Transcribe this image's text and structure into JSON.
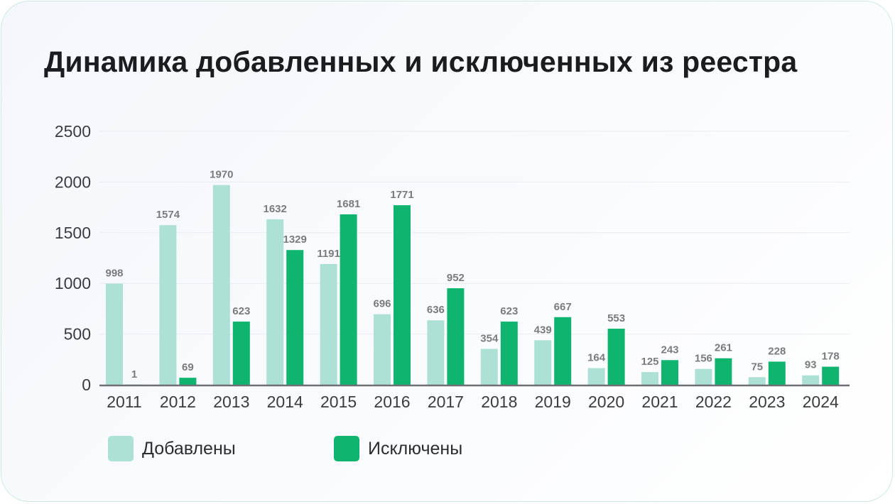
{
  "title": "Динамика добавленных и исключенных из реестра",
  "colors": {
    "added": "#aee1d5",
    "removed": "#0fb56f",
    "axis": "#6e7076",
    "grid": "#e9ecf0",
    "label": "#7a7b7e"
  },
  "chart_data": {
    "type": "bar",
    "title": "Динамика добавленных и исключенных из реестра",
    "categories": [
      "2011",
      "2012",
      "2013",
      "2014",
      "2015",
      "2016",
      "2017",
      "2018",
      "2019",
      "2020",
      "2021",
      "2022",
      "2023",
      "2024"
    ],
    "series": [
      {
        "name": "Добавлены",
        "values": [
          998,
          1574,
          1970,
          1632,
          1191,
          696,
          636,
          354,
          439,
          164,
          125,
          156,
          75,
          93
        ]
      },
      {
        "name": "Исключены",
        "values": [
          1,
          69,
          623,
          1329,
          1681,
          1771,
          952,
          623,
          667,
          553,
          243,
          261,
          228,
          178
        ]
      }
    ],
    "yticks": [
      "0",
      "500",
      "1000",
      "1500",
      "2000",
      "2500"
    ],
    "ylim": [
      0,
      2500
    ],
    "grid": true,
    "legend": "bottom-left",
    "xlabel": "",
    "ylabel": ""
  }
}
